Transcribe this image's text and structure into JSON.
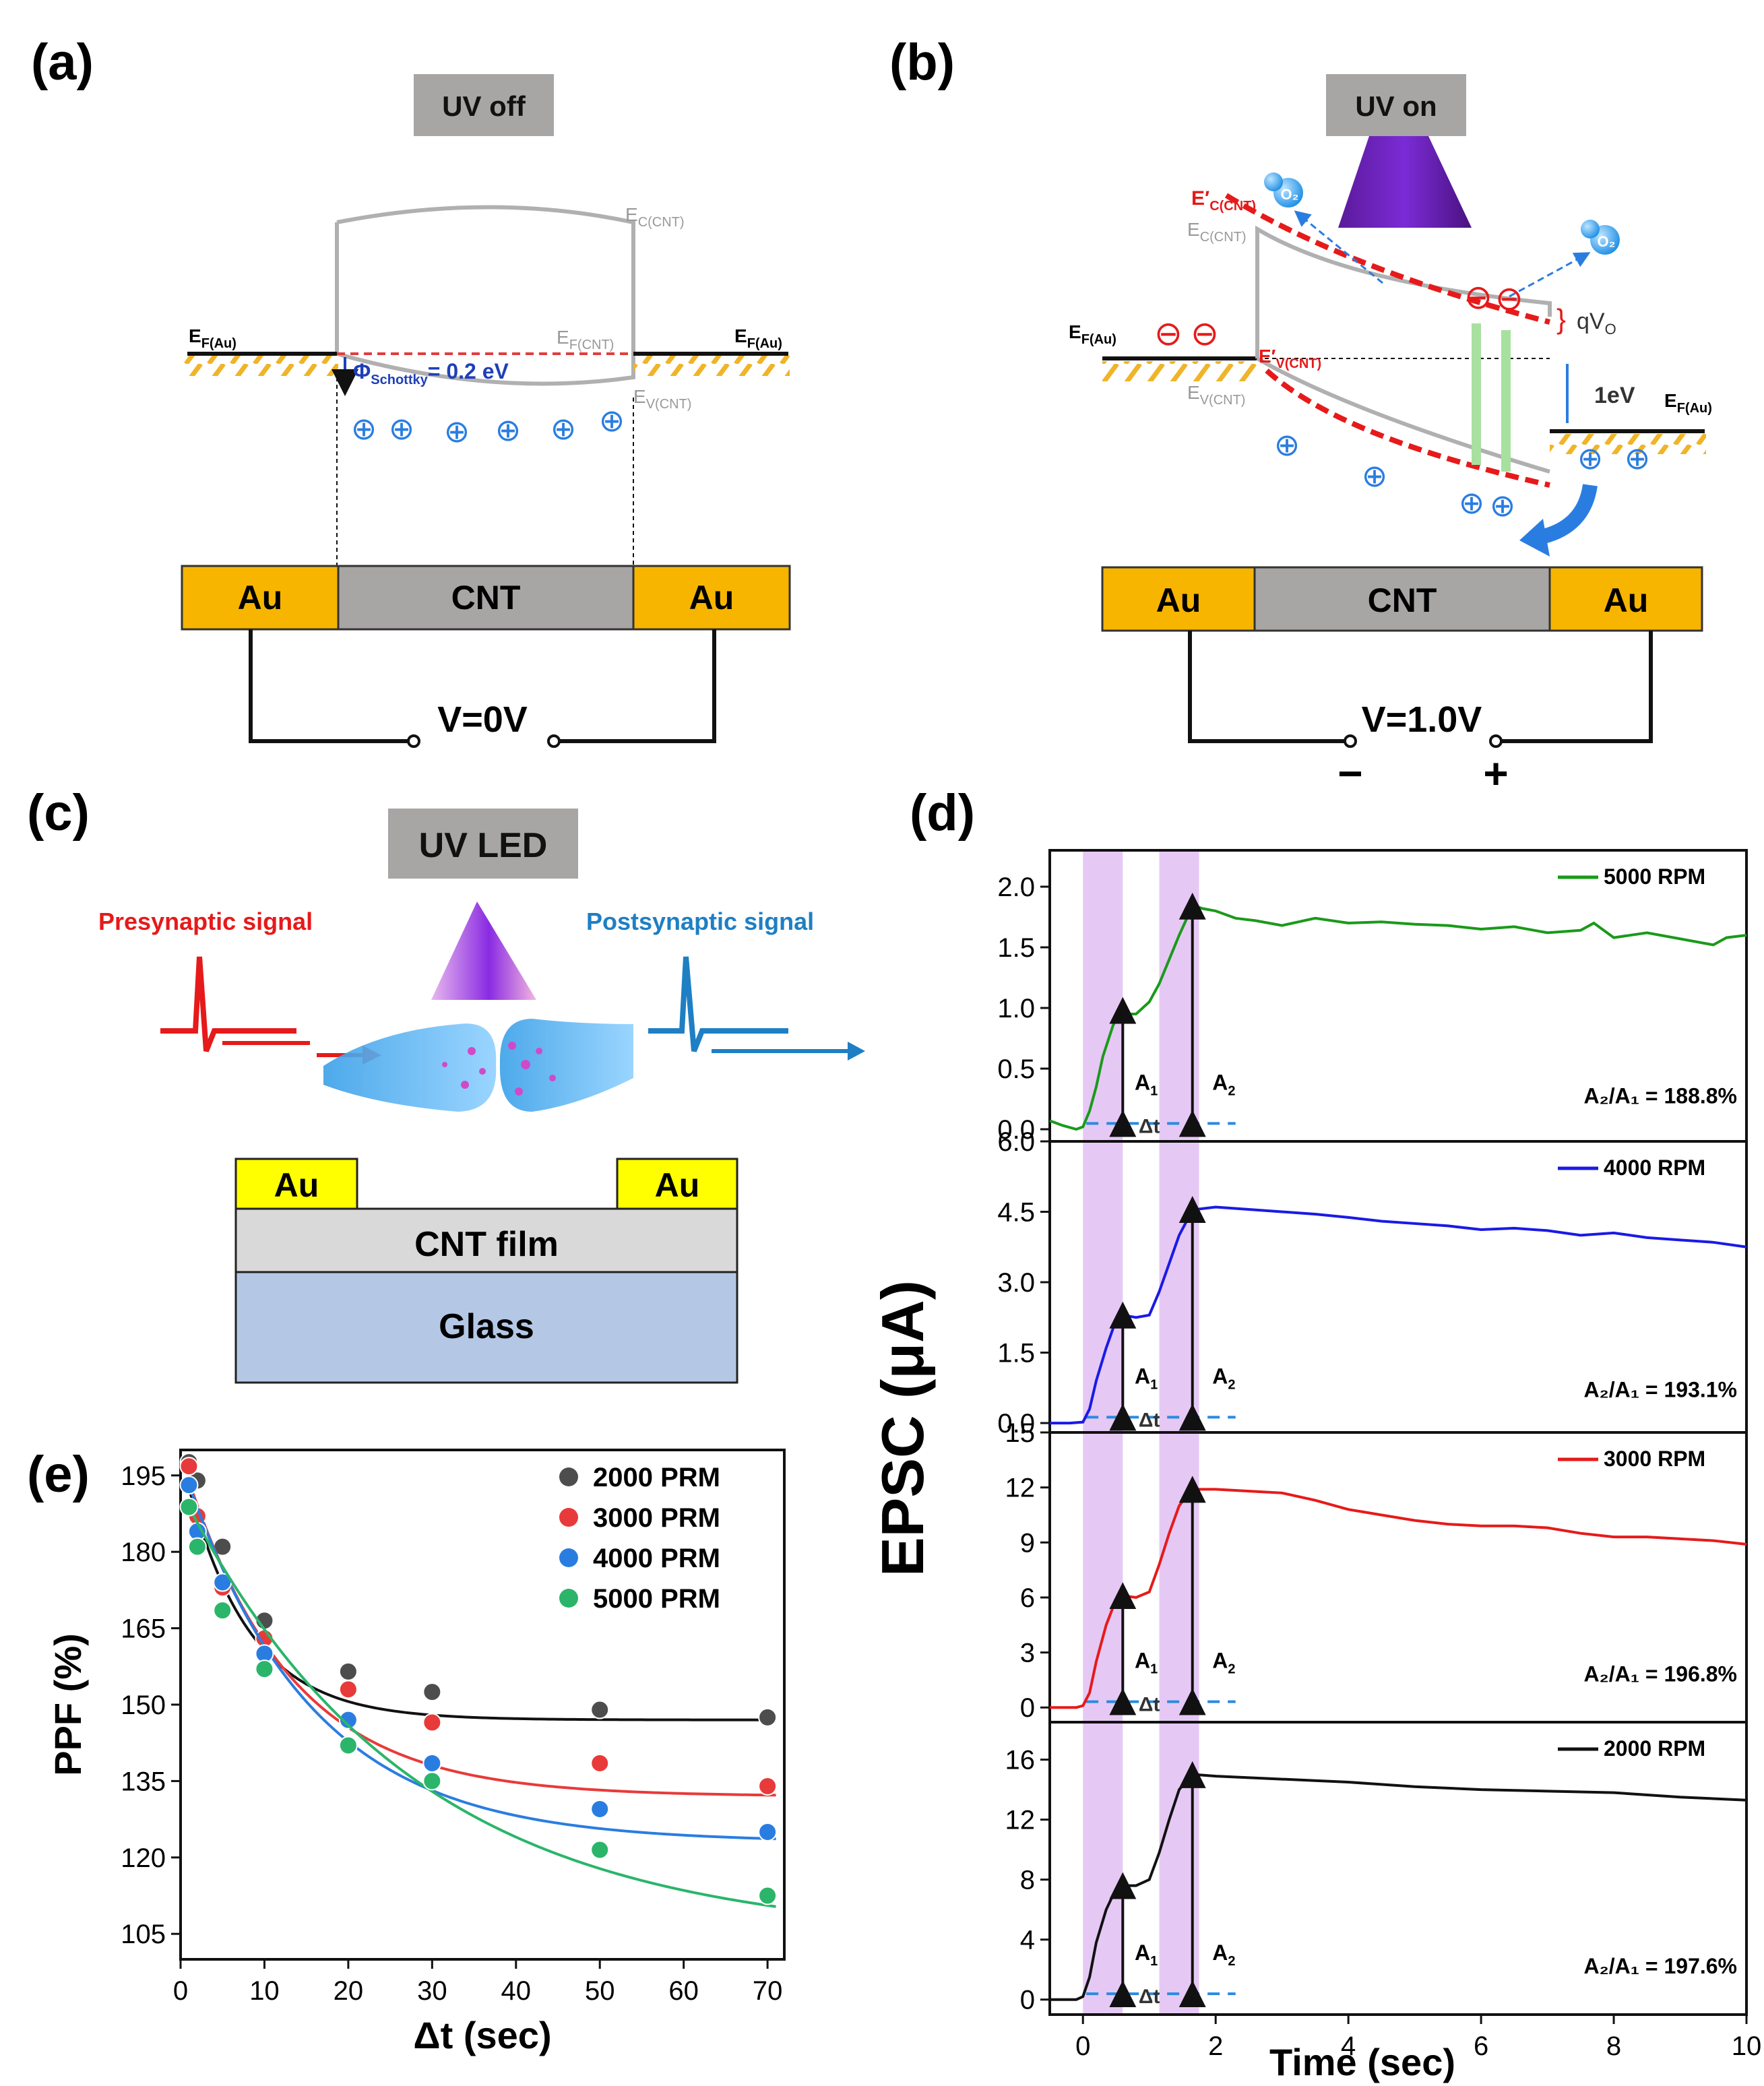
{
  "panel_a": {
    "label": "(a)",
    "uv_box": "UV off",
    "ec": "E",
    "ec_sub": "C(CNT)",
    "ef_cnt": "E",
    "ef_cnt_sub": "F(CNT)",
    "ev": "E",
    "ev_sub": "V(CNT)",
    "ef_au_left": "E",
    "ef_au_left_sub": "F(Au)",
    "ef_au_right": "E",
    "ef_au_right_sub": "F(Au)",
    "schottky_phi": "Φ",
    "schottky_sub": "Schottky",
    "schottky_val": "= 0.2 eV",
    "holes": [
      "⊕",
      "⊕",
      "⊕",
      "⊕",
      "⊕",
      "⊕"
    ],
    "au_left": "Au",
    "cnt": "CNT",
    "au_right": "Au",
    "voltage": "V=0V"
  },
  "panel_b": {
    "label": "(b)",
    "uv_box": "UV on",
    "ec_prime": "E′",
    "ec_prime_sub": "C(CNT)",
    "ec": "E",
    "ec_sub": "C(CNT)",
    "ev_prime": "E′",
    "ev_prime_sub": "V(CNT)",
    "ev": "E",
    "ev_sub": "V(CNT)",
    "ef_au_left": "E",
    "ef_au_left_sub": "F(Au)",
    "ef_au_right": "E",
    "ef_au_right_sub": "F(Au)",
    "qv": "qV",
    "qv_sub": "O",
    "one_ev": "1eV",
    "o2": "O₂",
    "electron": "⊖",
    "hole": "⊕",
    "au_left": "Au",
    "cnt": "CNT",
    "au_right": "Au",
    "voltage": "V=1.0V",
    "minus": "−",
    "plus": "+"
  },
  "panel_c": {
    "label": "(c)",
    "uv_box": "UV LED",
    "pre": "Presynaptic signal",
    "post": "Postsynaptic signal",
    "au_left": "Au",
    "au_right": "Au",
    "film": "CNT film",
    "glass": "Glass"
  },
  "panel_d": {
    "label": "(d)",
    "ylabel": "EPSC (μA)",
    "xlabel": "Time (sec)",
    "a1": "A",
    "a1_sub": "1",
    "a2": "A",
    "a2_sub": "2",
    "dt": "Δt"
  },
  "panel_e": {
    "label": "(e)"
  },
  "chart_data": [
    {
      "type": "line",
      "title": "5000 RPM",
      "xlabel": "Time (sec)",
      "ylabel": "EPSC (μA)",
      "xlim": [
        -0.5,
        10
      ],
      "ylim": [
        -0.1,
        2.3
      ],
      "yticks": [
        "0.0",
        "0.5",
        "1.0",
        "1.5",
        "2.0"
      ],
      "ytick_values": [
        0,
        0.5,
        1.0,
        1.5,
        2.0
      ],
      "color": "#1a9a1a",
      "legend": "5000 RPM",
      "ratio": "A₂/A₁ = 188.8%",
      "x": [
        -0.5,
        -0.3,
        -0.1,
        0,
        0.1,
        0.2,
        0.3,
        0.45,
        0.55,
        0.65,
        0.8,
        1.0,
        1.15,
        1.3,
        1.45,
        1.6,
        1.7,
        1.8,
        2.0,
        2.3,
        2.6,
        3.0,
        3.5,
        4.0,
        4.5,
        5.0,
        5.5,
        6.0,
        6.5,
        7.0,
        7.5,
        7.7,
        8.0,
        8.5,
        9.0,
        9.5,
        9.7,
        10.0
      ],
      "y": [
        0.07,
        0.03,
        0.0,
        0.02,
        0.15,
        0.35,
        0.6,
        0.85,
        0.98,
        0.95,
        0.95,
        1.05,
        1.2,
        1.4,
        1.6,
        1.78,
        1.84,
        1.82,
        1.8,
        1.74,
        1.72,
        1.68,
        1.74,
        1.7,
        1.71,
        1.69,
        1.68,
        1.65,
        1.67,
        1.62,
        1.64,
        1.7,
        1.58,
        1.62,
        1.57,
        1.52,
        1.58,
        1.6
      ],
      "a1": 0.98,
      "a2": 1.84
    },
    {
      "type": "line",
      "title": "4000 RPM",
      "xlabel": "Time (sec)",
      "ylabel": "EPSC (μA)",
      "xlim": [
        -0.5,
        10
      ],
      "ylim": [
        -0.2,
        6.0
      ],
      "yticks": [
        "0.0",
        "1.5",
        "3.0",
        "4.5",
        "6.0"
      ],
      "ytick_values": [
        0,
        1.5,
        3.0,
        4.5,
        6.0
      ],
      "color": "#1a1ae6",
      "legend": "4000 RPM",
      "ratio": "A₂/A₁ = 193.1%",
      "x": [
        -0.5,
        -0.2,
        0,
        0.1,
        0.2,
        0.35,
        0.5,
        0.6,
        0.8,
        1.0,
        1.15,
        1.3,
        1.45,
        1.6,
        1.7,
        2.0,
        2.5,
        3.0,
        3.5,
        4.0,
        4.5,
        5.0,
        5.5,
        6.0,
        6.5,
        7.0,
        7.5,
        8.0,
        8.5,
        9.0,
        9.5,
        10.0
      ],
      "y": [
        0.0,
        0.0,
        0.02,
        0.3,
        0.9,
        1.6,
        2.2,
        2.3,
        2.25,
        2.3,
        2.8,
        3.4,
        4.0,
        4.4,
        4.55,
        4.6,
        4.55,
        4.5,
        4.45,
        4.38,
        4.3,
        4.25,
        4.2,
        4.12,
        4.15,
        4.1,
        4.0,
        4.05,
        3.95,
        3.9,
        3.85,
        3.75
      ],
      "a1": 2.3,
      "a2": 4.55
    },
    {
      "type": "line",
      "title": "3000 RPM",
      "xlabel": "Time (sec)",
      "ylabel": "EPSC (μA)",
      "xlim": [
        -0.5,
        10
      ],
      "ylim": [
        -0.8,
        15
      ],
      "yticks": [
        "0",
        "3",
        "6",
        "9",
        "12",
        "15"
      ],
      "ytick_values": [
        0,
        3,
        6,
        9,
        12,
        15
      ],
      "color": "#e61a1a",
      "legend": "3000 RPM",
      "ratio": "A₂/A₁ = 196.8%",
      "x": [
        -0.5,
        -0.1,
        0,
        0.1,
        0.2,
        0.35,
        0.5,
        0.6,
        0.8,
        1.0,
        1.15,
        1.3,
        1.45,
        1.6,
        1.7,
        2.0,
        2.5,
        3.0,
        3.5,
        4.0,
        4.5,
        5.0,
        5.5,
        6.0,
        6.5,
        7.0,
        7.5,
        8.0,
        8.5,
        9.0,
        9.5,
        10.0
      ],
      "y": [
        0.0,
        0.0,
        0.1,
        0.8,
        2.5,
        4.5,
        5.9,
        6.1,
        6.0,
        6.3,
        7.8,
        9.5,
        11.0,
        11.7,
        11.9,
        11.9,
        11.8,
        11.7,
        11.3,
        10.8,
        10.5,
        10.2,
        10.0,
        9.9,
        9.9,
        9.8,
        9.5,
        9.3,
        9.3,
        9.2,
        9.1,
        8.9
      ],
      "a1": 6.1,
      "a2": 11.9
    },
    {
      "type": "line",
      "title": "2000 RPM",
      "xlabel": "Time (sec)",
      "ylabel": "EPSC (μA)",
      "xlim": [
        -0.5,
        10
      ],
      "ylim": [
        -1.0,
        18.5
      ],
      "yticks": [
        "0",
        "4",
        "8",
        "12",
        "16"
      ],
      "ytick_values": [
        0,
        4,
        8,
        12,
        16
      ],
      "xticks": [
        "0",
        "2",
        "4",
        "6",
        "8",
        "10"
      ],
      "xtick_values": [
        0,
        2,
        4,
        6,
        8,
        10
      ],
      "color": "#111111",
      "legend": "2000 RPM",
      "ratio": "A₂/A₁ = 197.6%",
      "x": [
        -0.5,
        -0.1,
        0,
        0.1,
        0.2,
        0.35,
        0.5,
        0.6,
        0.8,
        1.0,
        1.15,
        1.3,
        1.45,
        1.6,
        1.7,
        2.0,
        3.0,
        4.0,
        5.0,
        6.0,
        7.0,
        8.0,
        9.0,
        10.0
      ],
      "y": [
        0.0,
        0.0,
        0.2,
        1.5,
        3.8,
        6.0,
        7.4,
        7.6,
        7.6,
        8.0,
        9.8,
        12.0,
        14.0,
        14.8,
        15.0,
        14.9,
        14.7,
        14.5,
        14.2,
        14.0,
        13.9,
        13.8,
        13.5,
        13.3
      ],
      "a1": 7.6,
      "a2": 15.0
    },
    {
      "type": "scatter",
      "title": "",
      "xlabel": "Δt (sec)",
      "ylabel": "PPF (%)",
      "xlim": [
        0,
        72
      ],
      "ylim": [
        100,
        200
      ],
      "xticks": [
        "0",
        "10",
        "20",
        "30",
        "40",
        "50",
        "60",
        "70"
      ],
      "xtick_values": [
        0,
        10,
        20,
        30,
        40,
        50,
        60,
        70
      ],
      "yticks": [
        "105",
        "120",
        "135",
        "150",
        "165",
        "180",
        "195"
      ],
      "ytick_values": [
        105,
        120,
        135,
        150,
        165,
        180,
        195
      ],
      "x": [
        1,
        2,
        5,
        10,
        20,
        30,
        50,
        70
      ],
      "series": [
        {
          "name": "2000 PRM",
          "color": "#4d4d4d",
          "values": [
            197.6,
            194.0,
            181.0,
            166.5,
            156.5,
            152.5,
            149.0,
            147.5
          ],
          "fit_asym": 147.0,
          "fit_amp": 52.0,
          "fit_tau": 7.5
        },
        {
          "name": "3000 PRM",
          "color": "#e83a3a",
          "values": [
            196.8,
            187.0,
            173.0,
            163.0,
            153.0,
            146.5,
            138.5,
            134.0
          ],
          "fit_asym": 132.0,
          "fit_amp": 67.0,
          "fit_tau": 12.5
        },
        {
          "name": "4000 PRM",
          "color": "#2a7de0",
          "values": [
            193.1,
            184.0,
            174.0,
            160.0,
            147.0,
            138.5,
            129.5,
            125.0
          ],
          "fit_asym": 123.0,
          "fit_amp": 75.0,
          "fit_tau": 15.0
        },
        {
          "name": "5000 PRM",
          "color": "#2bb56a",
          "values": [
            188.8,
            181.0,
            168.5,
            157.0,
            142.0,
            135.0,
            121.5,
            112.5
          ],
          "fit_asym": 104.0,
          "fit_amp": 88.0,
          "fit_tau": 27.0
        }
      ]
    }
  ]
}
